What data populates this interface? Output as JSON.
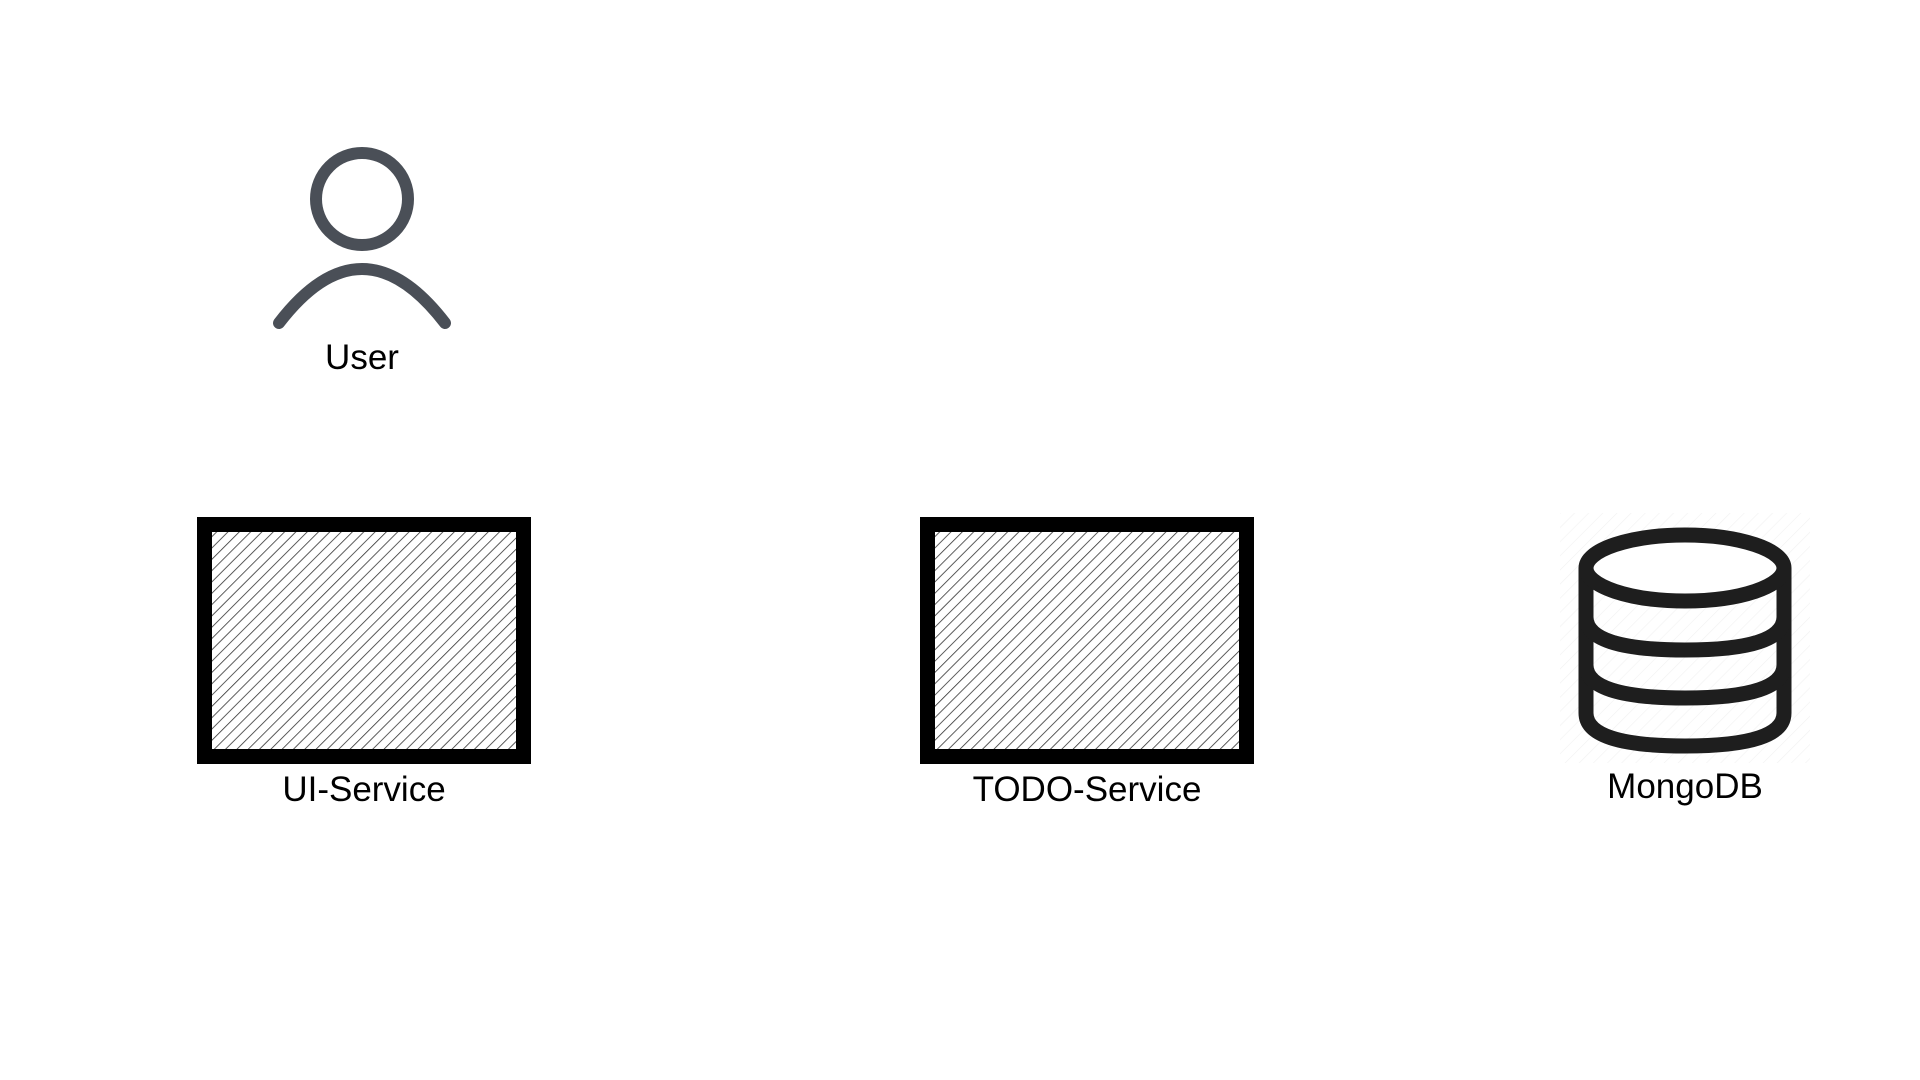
{
  "diagram": {
    "nodes": [
      {
        "id": "user",
        "label": "User",
        "icon": "user-icon"
      },
      {
        "id": "ui-service",
        "label": "UI-Service",
        "icon": "service-box-icon"
      },
      {
        "id": "todo-service",
        "label": "TODO-Service",
        "icon": "service-box-icon"
      },
      {
        "id": "mongodb",
        "label": "MongoDB",
        "icon": "database-icon"
      }
    ]
  },
  "colors": {
    "user_icon": "#4a4f57",
    "box_border": "#000000",
    "hatch": "#333333",
    "database_icon": "#1e1e1e"
  }
}
